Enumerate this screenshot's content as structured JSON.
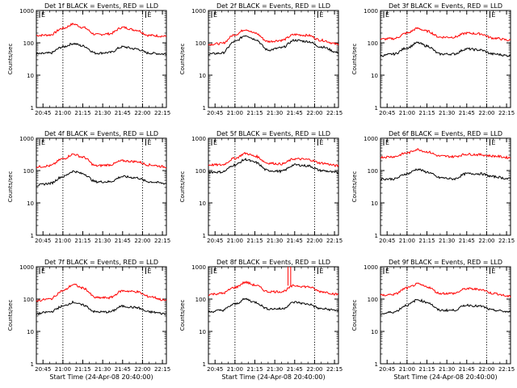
{
  "chart_data": {
    "type": "line",
    "layout": "3x3 grid",
    "y_scale": "log",
    "ylim": [
      1,
      1000
    ],
    "ylabel": "Counts/sec",
    "y_ticks": [
      "1",
      "10",
      "100",
      "1000"
    ],
    "x_ticks": [
      "20:45",
      "21:00",
      "21:15",
      "21:30",
      "21:45",
      "22:00",
      "22:15"
    ],
    "xlim": [
      "20:40",
      "22:18"
    ],
    "xlabel": "Start Time (24-Apr-08 20:40:00)",
    "attenuator_marks": [
      "21:00",
      "22:00"
    ],
    "attenuator_label": "E",
    "colors": {
      "events": "#000000",
      "lld": "#ff0000"
    },
    "panels": [
      {
        "title": "Det 1f BLACK = Events, RED = LLD",
        "xlabel_shown": false,
        "series": [
          {
            "color": "#ff0000",
            "x": [
              "20:40",
              "20:50",
              "21:00",
              "21:08",
              "21:15",
              "21:25",
              "21:35",
              "21:45",
              "21:55",
              "22:05",
              "22:18"
            ],
            "y": [
              170,
              175,
              280,
              380,
              300,
              180,
              190,
              300,
              250,
              170,
              160
            ]
          },
          {
            "color": "#000000",
            "x": [
              "20:40",
              "20:50",
              "21:00",
              "21:08",
              "21:15",
              "21:25",
              "21:35",
              "21:45",
              "21:55",
              "22:05",
              "22:18"
            ],
            "y": [
              45,
              48,
              75,
              95,
              80,
              48,
              50,
              75,
              65,
              48,
              45
            ]
          }
        ]
      },
      {
        "title": "Det 2f BLACK = Events, RED = LLD",
        "xlabel_shown": false,
        "series": [
          {
            "color": "#ff0000",
            "x": [
              "20:40",
              "20:50",
              "21:00",
              "21:08",
              "21:15",
              "21:25",
              "21:35",
              "21:45",
              "21:55",
              "22:05",
              "22:18"
            ],
            "y": [
              90,
              95,
              180,
              260,
              200,
              110,
              120,
              180,
              170,
              120,
              90
            ]
          },
          {
            "color": "#000000",
            "x": [
              "20:40",
              "20:50",
              "21:00",
              "21:08",
              "21:15",
              "21:25",
              "21:35",
              "21:45",
              "21:55",
              "22:05",
              "22:18"
            ],
            "y": [
              45,
              48,
              110,
              170,
              130,
              60,
              70,
              120,
              110,
              75,
              50
            ]
          }
        ]
      },
      {
        "title": "Det 3f BLACK = Events, RED = LLD",
        "xlabel_shown": false,
        "series": [
          {
            "color": "#ff0000",
            "x": [
              "20:40",
              "20:50",
              "21:00",
              "21:08",
              "21:15",
              "21:25",
              "21:35",
              "21:45",
              "21:55",
              "22:05",
              "22:18"
            ],
            "y": [
              130,
              135,
              200,
              280,
              230,
              150,
              150,
              200,
              190,
              140,
              120
            ]
          },
          {
            "color": "#000000",
            "x": [
              "20:40",
              "20:50",
              "21:00",
              "21:08",
              "21:15",
              "21:25",
              "21:35",
              "21:45",
              "21:55",
              "22:05",
              "22:18"
            ],
            "y": [
              40,
              45,
              70,
              100,
              80,
              45,
              45,
              65,
              60,
              45,
              40
            ]
          }
        ]
      },
      {
        "title": "Det 4f BLACK = Events, RED = LLD",
        "xlabel_shown": false,
        "series": [
          {
            "color": "#ff0000",
            "x": [
              "20:40",
              "20:50",
              "21:00",
              "21:08",
              "21:15",
              "21:25",
              "21:35",
              "21:45",
              "21:55",
              "22:05",
              "22:18"
            ],
            "y": [
              130,
              140,
              230,
              320,
              260,
              140,
              150,
              200,
              190,
              150,
              130
            ]
          },
          {
            "color": "#000000",
            "x": [
              "20:40",
              "20:50",
              "21:00",
              "21:08",
              "21:15",
              "21:25",
              "21:35",
              "21:45",
              "21:55",
              "22:05",
              "22:18"
            ],
            "y": [
              35,
              40,
              65,
              95,
              80,
              45,
              45,
              65,
              60,
              45,
              40
            ]
          }
        ]
      },
      {
        "title": "Det 5f BLACK = Events, RED = LLD",
        "xlabel_shown": false,
        "series": [
          {
            "color": "#ff0000",
            "x": [
              "20:40",
              "20:50",
              "21:00",
              "21:08",
              "21:15",
              "21:25",
              "21:35",
              "21:45",
              "21:55",
              "22:05",
              "22:18"
            ],
            "y": [
              150,
              150,
              240,
              340,
              280,
              170,
              160,
              230,
              220,
              170,
              140
            ]
          },
          {
            "color": "#000000",
            "x": [
              "20:40",
              "20:50",
              "21:00",
              "21:08",
              "21:15",
              "21:25",
              "21:35",
              "21:45",
              "21:55",
              "22:05",
              "22:18"
            ],
            "y": [
              90,
              90,
              150,
              220,
              180,
              100,
              95,
              150,
              140,
              100,
              85
            ]
          }
        ]
      },
      {
        "title": "Det 6f BLACK = Events, RED = LLD",
        "xlabel_shown": false,
        "series": [
          {
            "color": "#ff0000",
            "x": [
              "20:40",
              "20:50",
              "21:00",
              "21:08",
              "21:15",
              "21:25",
              "21:35",
              "21:45",
              "21:55",
              "22:05",
              "22:18"
            ],
            "y": [
              260,
              270,
              350,
              450,
              380,
              280,
              270,
              320,
              310,
              280,
              250
            ]
          },
          {
            "color": "#000000",
            "x": [
              "20:40",
              "20:50",
              "21:00",
              "21:08",
              "21:15",
              "21:25",
              "21:35",
              "21:45",
              "21:55",
              "22:05",
              "22:18"
            ],
            "y": [
              55,
              55,
              80,
              110,
              90,
              60,
              55,
              80,
              80,
              65,
              55
            ]
          }
        ]
      },
      {
        "title": "Det 7f BLACK = Events, RED = LLD",
        "xlabel_shown": true,
        "series": [
          {
            "color": "#ff0000",
            "x": [
              "20:40",
              "20:50",
              "21:00",
              "21:08",
              "21:15",
              "21:25",
              "21:35",
              "21:45",
              "21:55",
              "22:05",
              "22:18"
            ],
            "y": [
              90,
              100,
              180,
              280,
              220,
              110,
              110,
              180,
              170,
              120,
              90
            ]
          },
          {
            "color": "#000000",
            "x": [
              "20:40",
              "20:50",
              "21:00",
              "21:08",
              "21:15",
              "21:25",
              "21:35",
              "21:45",
              "21:55",
              "22:05",
              "22:18"
            ],
            "y": [
              35,
              40,
              60,
              80,
              65,
              40,
              40,
              60,
              55,
              40,
              35
            ]
          }
        ]
      },
      {
        "title": "Det 8f BLACK = Events, RED = LLD",
        "xlabel_shown": true,
        "spike": {
          "x": [
            "21:40",
            "21:42"
          ],
          "y": 1000
        },
        "series": [
          {
            "color": "#ff0000",
            "x": [
              "20:40",
              "20:50",
              "21:00",
              "21:08",
              "21:15",
              "21:25",
              "21:35",
              "21:45",
              "21:55",
              "22:05",
              "22:18"
            ],
            "y": [
              140,
              150,
              230,
              330,
              270,
              170,
              170,
              260,
              240,
              170,
              140
            ]
          },
          {
            "color": "#000000",
            "x": [
              "20:40",
              "20:50",
              "21:00",
              "21:08",
              "21:15",
              "21:25",
              "21:35",
              "21:45",
              "21:55",
              "22:05",
              "22:18"
            ],
            "y": [
              40,
              45,
              70,
              100,
              80,
              50,
              50,
              80,
              70,
              50,
              45
            ]
          }
        ]
      },
      {
        "title": "Det 9f BLACK = Events, RED = LLD",
        "xlabel_shown": true,
        "series": [
          {
            "color": "#ff0000",
            "x": [
              "20:40",
              "20:50",
              "21:00",
              "21:08",
              "21:15",
              "21:25",
              "21:35",
              "21:45",
              "21:55",
              "22:05",
              "22:18"
            ],
            "y": [
              130,
              140,
              220,
              290,
              240,
              150,
              150,
              210,
              200,
              150,
              120
            ]
          },
          {
            "color": "#000000",
            "x": [
              "20:40",
              "20:50",
              "21:00",
              "21:08",
              "21:15",
              "21:25",
              "21:35",
              "21:45",
              "21:55",
              "22:05",
              "22:18"
            ],
            "y": [
              35,
              40,
              65,
              95,
              80,
              45,
              45,
              65,
              60,
              45,
              40
            ]
          }
        ]
      }
    ]
  }
}
